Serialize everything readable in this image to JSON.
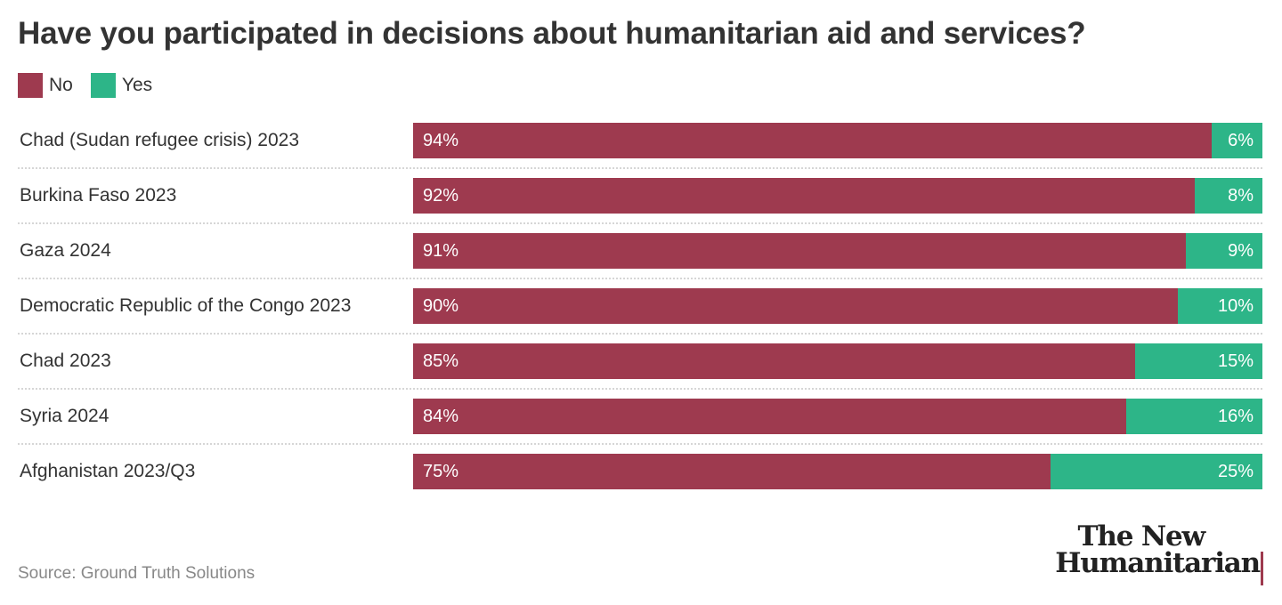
{
  "title": "Have you participated in decisions about humanitarian aid and services?",
  "legend": [
    {
      "label": "No",
      "color": "#9e3a4f"
    },
    {
      "label": "Yes",
      "color": "#2db588"
    }
  ],
  "source": "Source: Ground Truth Solutions",
  "logo": {
    "line1": "The New",
    "line2": "Humanitarian",
    "accent": "#9e3a4f"
  },
  "chart_data": {
    "type": "bar",
    "orientation": "horizontal",
    "stacked": true,
    "title": "Have you participated in decisions about humanitarian aid and services?",
    "xlabel": "",
    "ylabel": "",
    "xlim": [
      0,
      100
    ],
    "grid": false,
    "legend_position": "top-left",
    "categories": [
      "Chad (Sudan refugee crisis) 2023",
      "Burkina Faso 2023",
      "Gaza 2024",
      "Democratic Republic of the Congo 2023",
      "Chad 2023",
      "Syria 2024",
      "Afghanistan 2023/Q3"
    ],
    "series": [
      {
        "name": "No",
        "color": "#9e3a4f",
        "values": [
          94,
          92,
          91,
          90,
          85,
          84,
          75
        ]
      },
      {
        "name": "Yes",
        "color": "#2db588",
        "values": [
          6,
          8,
          9,
          10,
          15,
          16,
          25
        ]
      }
    ],
    "value_suffix": "%"
  }
}
